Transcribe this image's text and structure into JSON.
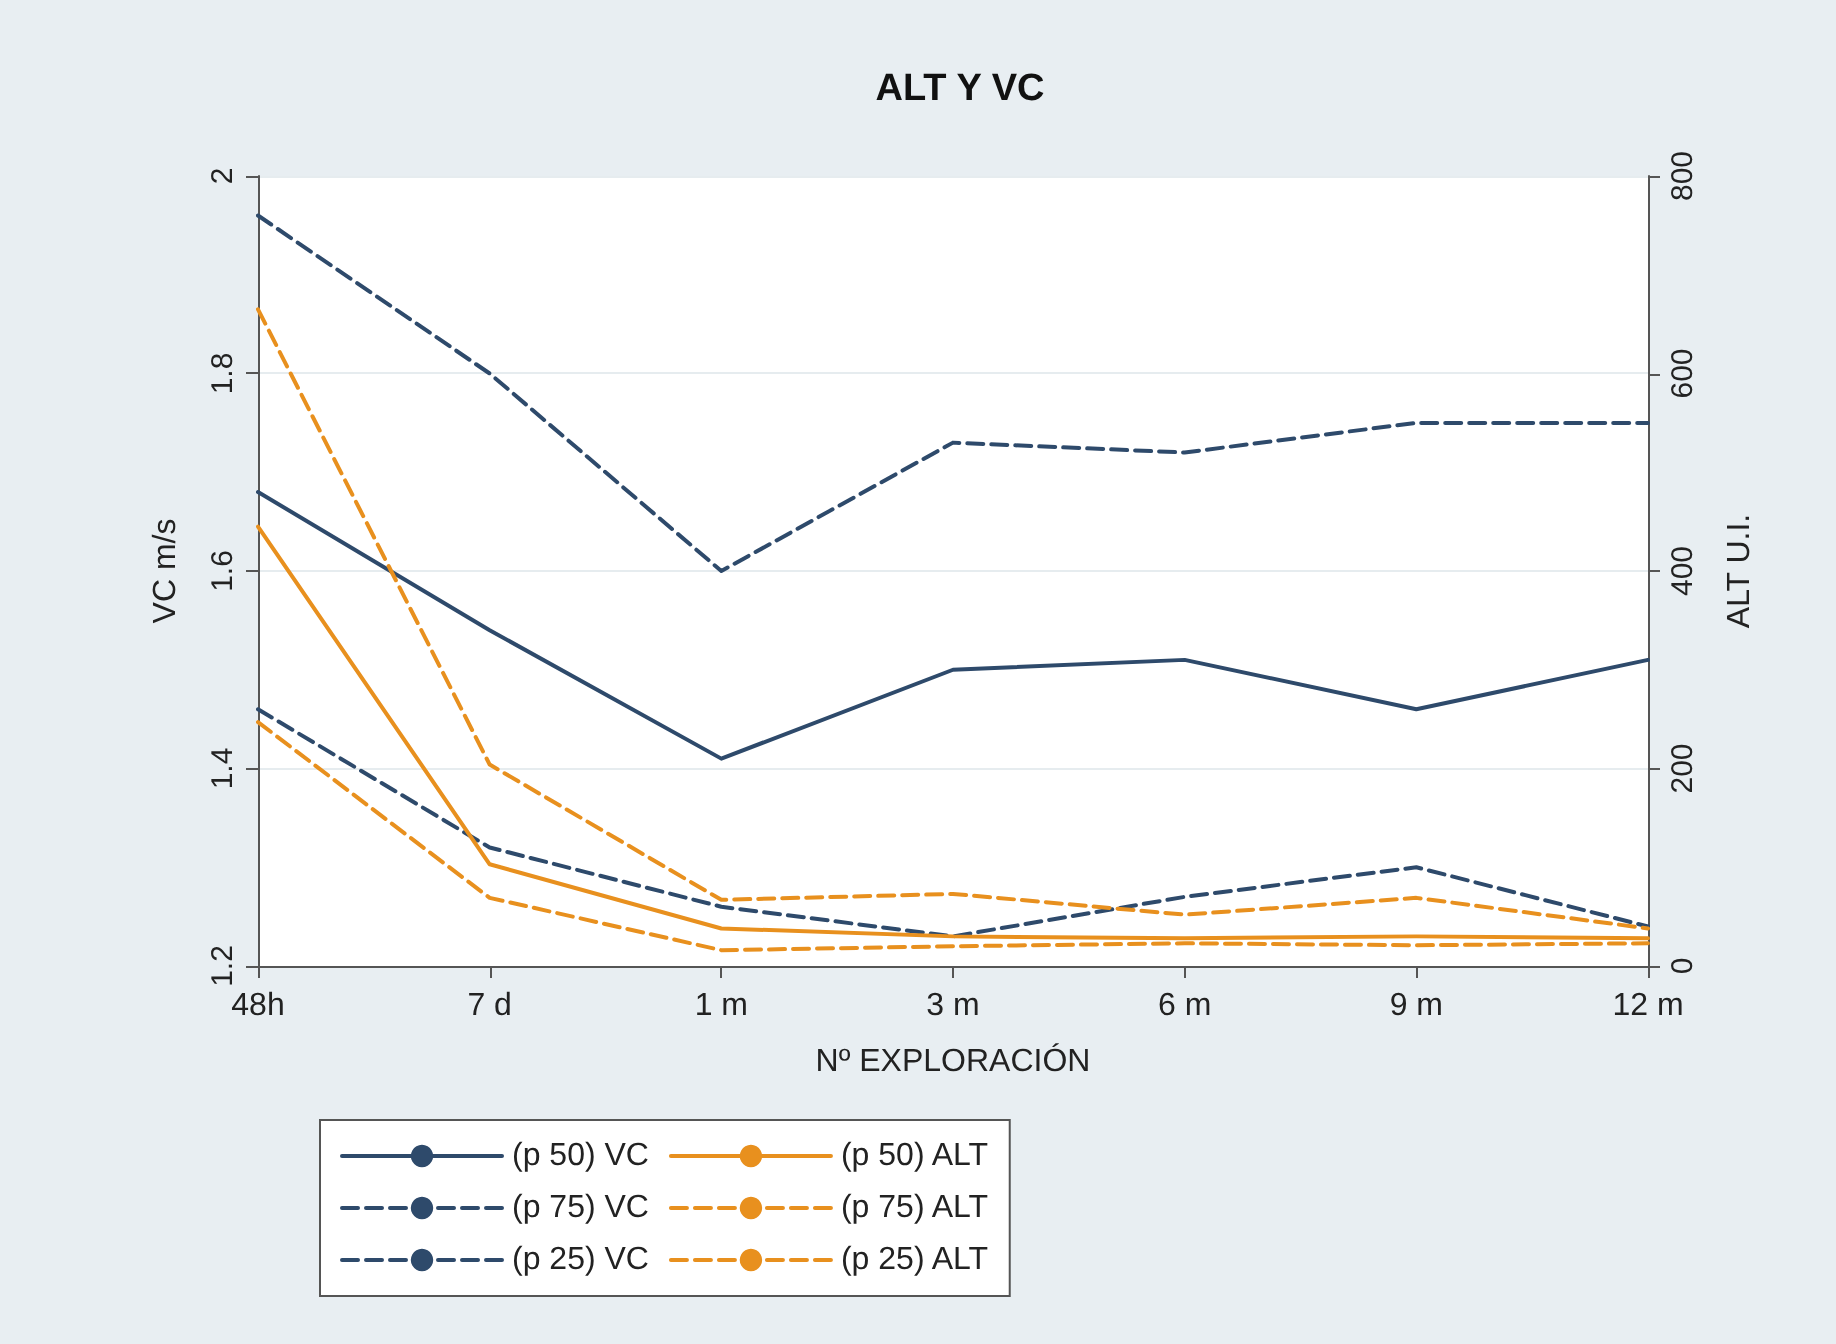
{
  "chart_data": {
    "type": "line",
    "title": "ALT Y VC",
    "xlabel": "Nº EXPLORACIÓN",
    "ylabel": "VC m/s",
    "y2label": "ALT U.I.",
    "categories": [
      "48h",
      "7 d",
      "1 m",
      "3 m",
      "6 m",
      "9 m",
      "12 m"
    ],
    "series": [
      {
        "name": "(p 50) VC",
        "color": "#2e4a6b",
        "line_style": "solid",
        "values": [
          1.68,
          1.54,
          1.41,
          1.5,
          1.51,
          1.46,
          1.51
        ]
      },
      {
        "name": "(p 75) VC",
        "color": "#2e4a6b",
        "line_style": "dashed",
        "values": [
          1.96,
          1.8,
          1.6,
          1.73,
          1.72,
          1.75,
          1.75
        ]
      },
      {
        "name": "(p 25) VC",
        "color": "#2e4a6b",
        "line_style": "dashed",
        "values": [
          1.46,
          1.32,
          1.26,
          1.23,
          1.27,
          1.3,
          1.24
        ]
      },
      {
        "name": "(p 50) ALT",
        "color": "#e8901e",
        "line_style": "solid",
        "axis": "y2",
        "values": [
          445,
          103,
          38,
          30,
          28,
          30,
          28
        ]
      },
      {
        "name": "(p 75) ALT",
        "color": "#e8901e",
        "line_style": "dashed",
        "axis": "y2",
        "values": [
          665,
          204,
          67,
          73,
          52,
          69,
          38
        ]
      },
      {
        "name": "(p 25) ALT",
        "color": "#e8901e",
        "line_style": "dashed",
        "axis": "y2",
        "values": [
          247,
          69,
          16,
          20,
          23,
          21,
          23
        ]
      }
    ],
    "ylim": [
      1.2,
      2
    ],
    "yticks": [
      1.2,
      1.4,
      1.6,
      1.8,
      2
    ],
    "y2lim": [
      0,
      800
    ],
    "y2ticks": [
      0,
      200,
      400,
      600,
      800
    ],
    "grid": "y",
    "legend": "bottom",
    "marker": "none"
  }
}
